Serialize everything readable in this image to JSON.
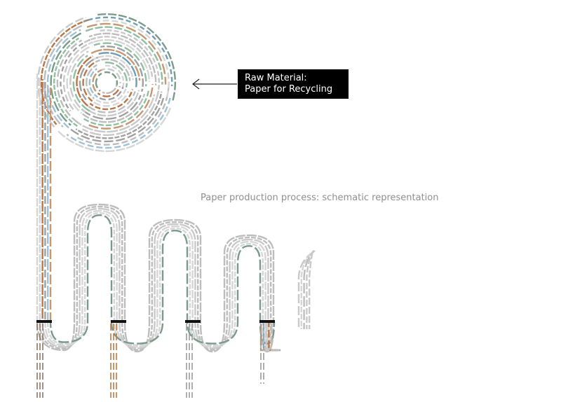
{
  "callout": {
    "line1": "Raw Material:",
    "line2": "Paper for Recycling"
  },
  "caption": "Paper production process: schematic representation",
  "palette": [
    "#c9c9c9",
    "#d6d6d6",
    "#bdbdbd",
    "#b8764a",
    "#6d9fb3",
    "#9cc2d6",
    "#8fbf9f",
    "#7a9a8a",
    "#a0a0a0",
    "#c69872"
  ],
  "icons": [
    "arrow-left-icon"
  ]
}
